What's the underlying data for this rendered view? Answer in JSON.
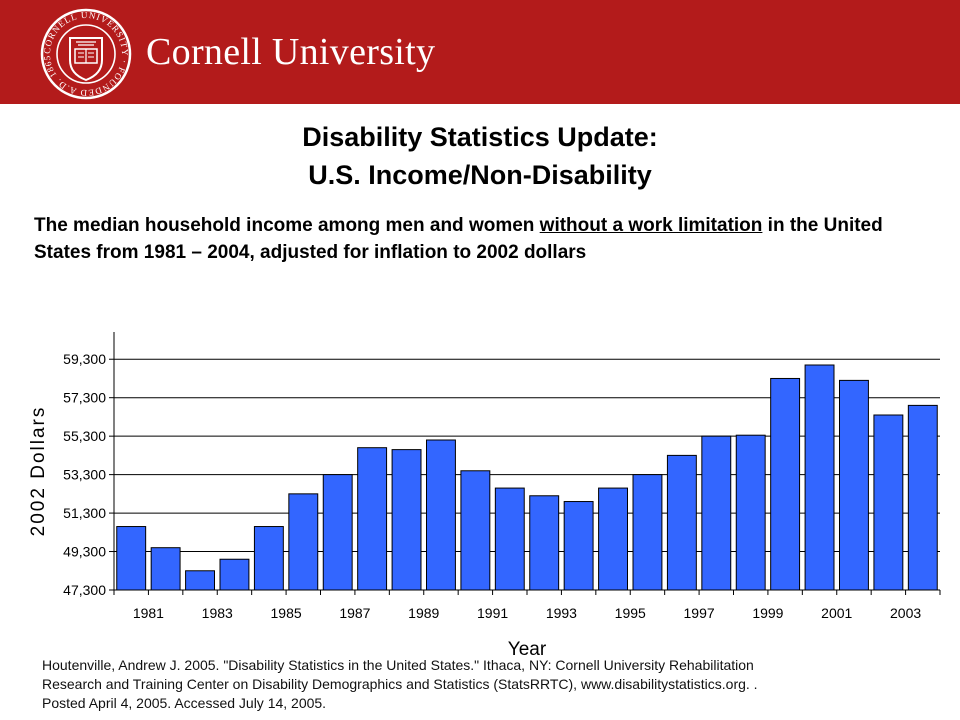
{
  "header": {
    "university_name": "Cornell University",
    "seal_text": "CORNELL UNIVERSITY · FOUNDED A.D. 1865 ·",
    "brand_color": "#b31b1b"
  },
  "title": {
    "line1": "Disability Statistics Update:",
    "line2": "U.S. Income/Non-Disability"
  },
  "description": {
    "part1": "The median household income among men and women ",
    "underlined": "without a work limitation",
    "part2": " in the United States from 1981 – 2004, adjusted for inflation to 2002 dollars"
  },
  "citation": {
    "line1": "Houtenville, Andrew J. 2005. \"Disability Statistics in the United States.\" Ithaca, NY: Cornell University Rehabilitation",
    "line2": "Research and Training Center on Disability Demographics and Statistics (StatsRRTC), www.disabilitystatistics.org.     .",
    "line3": "Posted April 4, 2005. Accessed July 14, 2005."
  },
  "chart_data": {
    "type": "bar",
    "title": "",
    "xlabel": "Year",
    "ylabel": "2002 Dollars",
    "ylim": [
      47300,
      60300
    ],
    "yticks": [
      47300,
      49300,
      51300,
      53300,
      55300,
      57300,
      59300
    ],
    "ytick_labels": [
      "47,300",
      "49,300",
      "51,300",
      "53,300",
      "55,300",
      "57,300",
      "59,300"
    ],
    "categories": [
      "1981",
      "1982",
      "1983",
      "1984",
      "1985",
      "1986",
      "1987",
      "1988",
      "1989",
      "1990",
      "1991",
      "1992",
      "1993",
      "1994",
      "1995",
      "1996",
      "1997",
      "1998",
      "1999",
      "2000",
      "2001",
      "2002",
      "2003",
      "2004"
    ],
    "xtick_labels": [
      "1981",
      "",
      "1983",
      "",
      "1985",
      "",
      "1987",
      "",
      "1989",
      "",
      "1991",
      "",
      "1993",
      "",
      "1995",
      "",
      "1997",
      "",
      "1999",
      "",
      "2001",
      "",
      "2003",
      ""
    ],
    "values": [
      50600,
      49500,
      48300,
      48900,
      50600,
      52300,
      53300,
      54700,
      54600,
      55100,
      53500,
      52600,
      52200,
      51900,
      52600,
      53300,
      54300,
      55300,
      55350,
      58300,
      59000,
      58200,
      56400,
      56900
    ],
    "bar_color": "#3366ff",
    "grid": true,
    "legend": "none"
  }
}
